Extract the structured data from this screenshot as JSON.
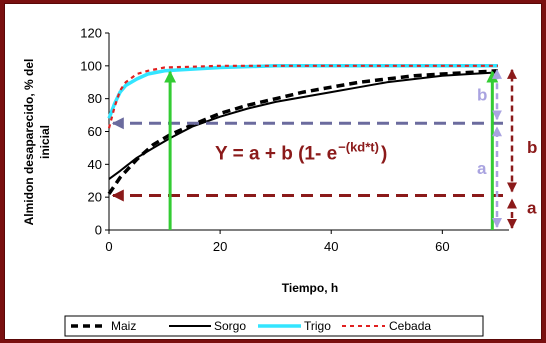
{
  "colors": {
    "frame": "#7a1010",
    "maiz": "#000000",
    "sorgo": "#000000",
    "trigo": "#33e5ff",
    "cebada": "#e02020",
    "dark_red": "#8b1a1a",
    "green": "#33cc33",
    "slate_blue": "#6b6b9e",
    "light_purple": "#a9a3e0"
  },
  "chart_data": {
    "type": "line",
    "ylabel": "Almidon desaparecido, % del inicial",
    "xlabel": "Tiempo, h",
    "xlim": [
      0,
      72
    ],
    "ylim": [
      0,
      120
    ],
    "xticks": [
      0,
      20,
      40,
      60
    ],
    "yticks": [
      0,
      20,
      40,
      60,
      80,
      100,
      120
    ],
    "series": [
      {
        "name": "Maiz",
        "style": "dashed-thick",
        "x": [
          0,
          2,
          5,
          8,
          11,
          15,
          20,
          25,
          30,
          35,
          40,
          45,
          50,
          55,
          60,
          65,
          70
        ],
        "y": [
          22,
          32,
          43,
          52,
          58,
          64,
          71,
          76,
          80,
          84,
          87,
          90,
          92,
          94,
          95,
          96,
          97
        ]
      },
      {
        "name": "Sorgo",
        "style": "solid",
        "x": [
          0,
          2,
          5,
          8,
          11,
          15,
          20,
          25,
          30,
          35,
          40,
          45,
          50,
          55,
          60,
          65,
          70
        ],
        "y": [
          31,
          36,
          44,
          50,
          56,
          63,
          69,
          74,
          78,
          81,
          84,
          87,
          90,
          92,
          94,
          95,
          96
        ]
      },
      {
        "name": "Trigo",
        "style": "solid-thick",
        "x": [
          0,
          1,
          2,
          3,
          5,
          7,
          10,
          15,
          20,
          30,
          40,
          50,
          60,
          70
        ],
        "y": [
          68,
          77,
          84,
          88,
          92,
          95,
          97,
          98,
          99,
          100,
          100,
          100,
          100,
          100
        ]
      },
      {
        "name": "Cebada",
        "style": "dotted",
        "x": [
          0,
          1,
          2,
          3,
          5,
          7,
          10,
          15,
          20,
          30,
          40,
          50,
          60,
          70
        ],
        "y": [
          62,
          75,
          85,
          90,
          95,
          97,
          99,
          99.5,
          100,
          100,
          100,
          100,
          100,
          100
        ]
      }
    ],
    "annotations": {
      "equation": "Y = a + b (1- e ",
      "exponent": "−(kd*t)",
      "equation_close": ")",
      "labels": {
        "a_inner": "a",
        "b_inner": "b",
        "a_outer": "a",
        "b_outer": "b"
      },
      "a_level": 21,
      "ab_level": 65,
      "b_top": 100,
      "green_arrow_times": [
        11,
        69
      ]
    },
    "legend_position": "bottom"
  }
}
